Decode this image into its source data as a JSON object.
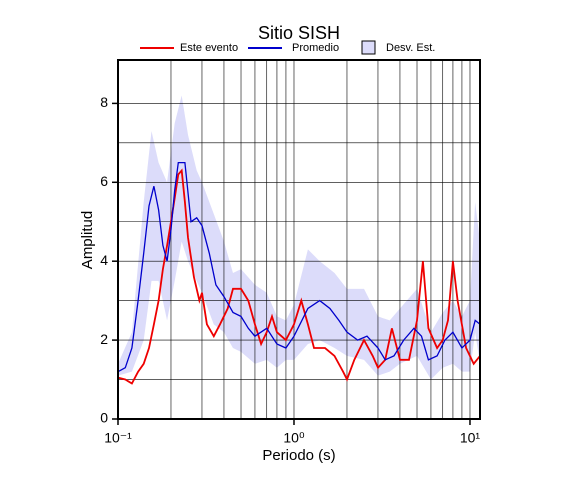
{
  "chart_data": {
    "type": "line",
    "title": "Sitio SISH",
    "xlabel": "Periodo (s)",
    "ylabel": "Amplitud",
    "xscale": "log",
    "xlim": [
      0.1,
      11.4
    ],
    "ylim": [
      0,
      9.1
    ],
    "xticks": [
      {
        "value": 0.1,
        "label": "10⁻¹"
      },
      {
        "value": 1,
        "label": "10⁰"
      },
      {
        "value": 10,
        "label": "10¹"
      }
    ],
    "minor_xticks": [
      0.2,
      0.3,
      0.4,
      0.5,
      0.6,
      0.7,
      0.8,
      0.9,
      2,
      3,
      4,
      5,
      6,
      7,
      8,
      9
    ],
    "yticks": [
      0,
      2,
      4,
      6,
      8
    ],
    "minor_yticks": [
      1,
      3,
      5,
      7
    ],
    "grid": true,
    "series": [
      {
        "name": "Este evento",
        "color": "#ee0000",
        "x": [
          0.1,
          0.11,
          0.12,
          0.13,
          0.14,
          0.15,
          0.16,
          0.17,
          0.18,
          0.19,
          0.2,
          0.21,
          0.22,
          0.23,
          0.24,
          0.25,
          0.27,
          0.29,
          0.3,
          0.32,
          0.35,
          0.38,
          0.42,
          0.45,
          0.5,
          0.55,
          0.6,
          0.65,
          0.7,
          0.75,
          0.8,
          0.9,
          1.0,
          1.1,
          1.2,
          1.3,
          1.5,
          1.7,
          1.9,
          2.0,
          2.2,
          2.5,
          2.8,
          3.0,
          3.3,
          3.6,
          4.0,
          4.5,
          5.0,
          5.4,
          5.8,
          6.5,
          7.0,
          7.5,
          8.0,
          8.5,
          9.5,
          10.5,
          11.4
        ],
        "values": [
          1.05,
          1.0,
          0.9,
          1.2,
          1.4,
          1.8,
          2.4,
          3.0,
          3.8,
          4.4,
          5.0,
          5.6,
          6.2,
          6.3,
          5.5,
          4.6,
          3.6,
          3.0,
          3.2,
          2.4,
          2.1,
          2.4,
          2.8,
          3.3,
          3.3,
          3.0,
          2.4,
          1.9,
          2.2,
          2.6,
          2.2,
          2.0,
          2.4,
          3.0,
          2.4,
          1.8,
          1.8,
          1.6,
          1.2,
          1.0,
          1.5,
          2.0,
          1.6,
          1.3,
          1.5,
          2.3,
          1.5,
          1.5,
          2.5,
          4.0,
          2.3,
          1.8,
          2.0,
          2.5,
          4.0,
          3.0,
          1.8,
          1.4,
          1.6
        ]
      },
      {
        "name": "Promedio",
        "color": "#0000cc",
        "x": [
          0.1,
          0.11,
          0.12,
          0.13,
          0.14,
          0.15,
          0.16,
          0.17,
          0.18,
          0.19,
          0.2,
          0.21,
          0.22,
          0.24,
          0.26,
          0.28,
          0.3,
          0.33,
          0.36,
          0.4,
          0.45,
          0.5,
          0.55,
          0.6,
          0.7,
          0.8,
          0.9,
          1.0,
          1.2,
          1.4,
          1.6,
          1.8,
          2.0,
          2.3,
          2.6,
          3.0,
          3.3,
          3.7,
          4.2,
          4.8,
          5.3,
          5.8,
          6.5,
          7.2,
          8.0,
          9.0,
          10.0,
          10.7,
          11.4
        ],
        "values": [
          1.2,
          1.3,
          1.8,
          3.0,
          4.2,
          5.4,
          5.9,
          5.3,
          4.4,
          4.0,
          4.8,
          5.8,
          6.5,
          6.5,
          5.0,
          5.1,
          4.9,
          4.2,
          3.4,
          3.1,
          2.7,
          2.6,
          2.3,
          2.1,
          2.3,
          1.9,
          1.8,
          2.1,
          2.8,
          3.0,
          2.8,
          2.5,
          2.2,
          2.0,
          2.1,
          1.8,
          1.5,
          1.6,
          2.0,
          2.3,
          2.1,
          1.5,
          1.6,
          2.0,
          2.2,
          1.8,
          2.0,
          2.5,
          2.4
        ]
      }
    ],
    "band": {
      "name": "Desv. Est.",
      "color": "#dcdcfa",
      "x": [
        0.1,
        0.12,
        0.14,
        0.155,
        0.17,
        0.19,
        0.21,
        0.23,
        0.25,
        0.28,
        0.3,
        0.35,
        0.4,
        0.45,
        0.5,
        0.6,
        0.7,
        0.8,
        0.9,
        1.0,
        1.2,
        1.4,
        1.7,
        2.0,
        2.5,
        3.0,
        3.5,
        4.0,
        5.0,
        6.0,
        7.0,
        8.0,
        9.0,
        10.0,
        10.7,
        11.4
      ],
      "lower": [
        1.1,
        1.2,
        2.0,
        3.5,
        3.5,
        2.5,
        3.5,
        4.5,
        4.0,
        3.5,
        3.2,
        2.4,
        2.2,
        1.8,
        1.7,
        1.4,
        1.5,
        1.3,
        1.5,
        1.5,
        1.9,
        2.0,
        1.8,
        1.6,
        1.5,
        1.1,
        1.2,
        1.4,
        1.6,
        1.0,
        1.3,
        1.4,
        1.2,
        1.2,
        2.2,
        1.4
      ],
      "upper": [
        1.4,
        2.2,
        5.5,
        7.3,
        6.5,
        6.0,
        7.5,
        8.2,
        7.2,
        6.3,
        6.0,
        5.2,
        4.5,
        3.7,
        3.8,
        3.4,
        3.2,
        2.6,
        2.5,
        2.9,
        4.3,
        4.0,
        3.7,
        3.3,
        3.3,
        2.6,
        2.5,
        2.8,
        3.3,
        2.2,
        2.7,
        3.0,
        2.6,
        3.0,
        5.5,
        4.5
      ]
    }
  }
}
